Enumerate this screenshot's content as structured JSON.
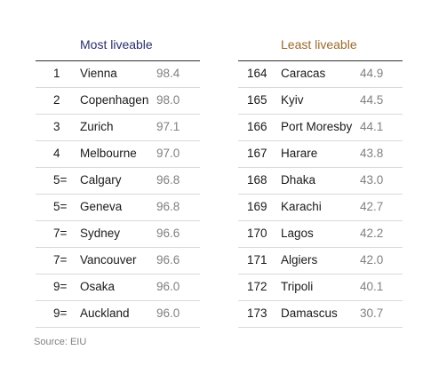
{
  "tables": [
    {
      "title": "Most liveable",
      "rows": [
        [
          "1",
          "Vienna",
          "98.4"
        ],
        [
          "2",
          "Copenhagen",
          "98.0"
        ],
        [
          "3",
          "Zurich",
          "97.1"
        ],
        [
          "4",
          "Melbourne",
          "97.0"
        ],
        [
          "5=",
          "Calgary",
          "96.8"
        ],
        [
          "5=",
          "Geneva",
          "96.8"
        ],
        [
          "7=",
          "Sydney",
          "96.6"
        ],
        [
          "7=",
          "Vancouver",
          "96.6"
        ],
        [
          "9=",
          "Osaka",
          "96.0"
        ],
        [
          "9=",
          "Auckland",
          "96.0"
        ]
      ]
    },
    {
      "title": "Least liveable",
      "rows": [
        [
          "164",
          "Caracas",
          "44.9"
        ],
        [
          "165",
          "Kyiv",
          "44.5"
        ],
        [
          "166",
          "Port Moresby",
          "44.1"
        ],
        [
          "167",
          "Harare",
          "43.8"
        ],
        [
          "168",
          "Dhaka",
          "43.0"
        ],
        [
          "169",
          "Karachi",
          "42.7"
        ],
        [
          "170",
          "Lagos",
          "42.2"
        ],
        [
          "171",
          "Algiers",
          "42.0"
        ],
        [
          "172",
          "Tripoli",
          "40.1"
        ],
        [
          "173",
          "Damascus",
          "30.7"
        ]
      ]
    }
  ],
  "source": "Source: EIU"
}
